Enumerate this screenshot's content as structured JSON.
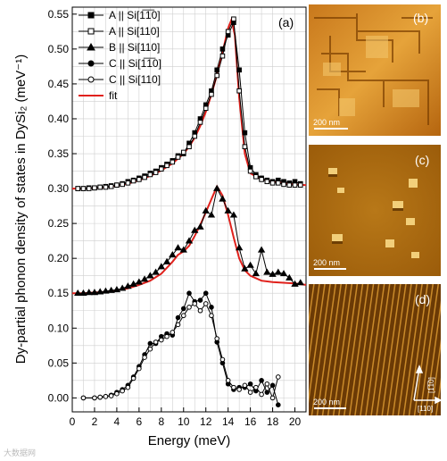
{
  "chart_data": {
    "type": "line",
    "panel_label": "(a)",
    "xlabel": "Energy (meV)",
    "ylabel": "Dy-partial phonon density of states in DySi₂ (meV⁻¹)",
    "xlim": [
      0,
      21
    ],
    "ylim": [
      -0.02,
      0.56
    ],
    "xticks": [
      0,
      2,
      4,
      6,
      8,
      10,
      12,
      14,
      16,
      18,
      20
    ],
    "yticks": [
      0.0,
      0.05,
      0.1,
      0.15,
      0.2,
      0.25,
      0.3,
      0.35,
      0.4,
      0.45,
      0.5,
      0.55
    ],
    "grid": true,
    "legend_position": "top-left",
    "legend": [
      {
        "label": "A || Si[1̅1̅0]",
        "marker": "square-filled"
      },
      {
        "label": "A || Si[110]",
        "marker": "square-open"
      },
      {
        "label": "B || Si[110]",
        "marker": "triangle-filled"
      },
      {
        "label": "C || Si[1̅1̅0]",
        "marker": "circle-filled"
      },
      {
        "label": "C || Si[110]",
        "marker": "circle-open"
      },
      {
        "label": "fit",
        "marker": "line-red"
      }
    ],
    "series": [
      {
        "marker": "square-filled",
        "x": [
          0.5,
          1,
          1.5,
          2,
          2.5,
          3,
          3.5,
          4,
          4.5,
          5,
          5.5,
          6,
          6.5,
          7,
          7.5,
          8,
          8.5,
          9,
          9.5,
          10,
          10.5,
          11,
          11.5,
          12,
          12.5,
          13,
          13.5,
          14,
          14.5,
          15,
          15.5,
          16,
          16.5,
          17,
          17.5,
          18,
          18.5,
          19,
          19.5,
          20,
          20.5
        ],
        "y": [
          0.3,
          0.3,
          0.301,
          0.301,
          0.302,
          0.303,
          0.304,
          0.305,
          0.307,
          0.31,
          0.312,
          0.315,
          0.318,
          0.322,
          0.325,
          0.33,
          0.335,
          0.34,
          0.347,
          0.35,
          0.365,
          0.38,
          0.4,
          0.42,
          0.44,
          0.47,
          0.5,
          0.52,
          0.538,
          0.47,
          0.38,
          0.33,
          0.32,
          0.315,
          0.312,
          0.31,
          0.312,
          0.31,
          0.308,
          0.31,
          0.307
        ]
      },
      {
        "marker": "square-open",
        "x": [
          0.5,
          1,
          1.5,
          2,
          2.5,
          3,
          3.5,
          4,
          4.5,
          5,
          5.5,
          6,
          6.5,
          7,
          7.5,
          8,
          8.5,
          9,
          9.5,
          10,
          10.5,
          11,
          11.5,
          12,
          12.5,
          13,
          13.5,
          14,
          14.5,
          15,
          15.5,
          16,
          16.5,
          17,
          17.5,
          18,
          18.5,
          19,
          19.5,
          20,
          20.5
        ],
        "y": [
          0.3,
          0.3,
          0.3,
          0.301,
          0.302,
          0.302,
          0.303,
          0.305,
          0.306,
          0.308,
          0.311,
          0.313,
          0.316,
          0.32,
          0.323,
          0.328,
          0.333,
          0.338,
          0.345,
          0.352,
          0.36,
          0.375,
          0.395,
          0.415,
          0.435,
          0.462,
          0.49,
          0.525,
          0.543,
          0.44,
          0.36,
          0.325,
          0.317,
          0.313,
          0.31,
          0.308,
          0.308,
          0.306,
          0.305,
          0.305,
          0.305
        ]
      },
      {
        "marker": "triangle-filled",
        "x": [
          0.5,
          1,
          1.5,
          2,
          2.5,
          3,
          3.5,
          4,
          4.5,
          5,
          5.5,
          6,
          6.5,
          7,
          7.5,
          8,
          8.5,
          9,
          9.5,
          10,
          10.5,
          11,
          11.5,
          12,
          12.5,
          13,
          13.5,
          14,
          14.5,
          15,
          15.5,
          16,
          16.5,
          17,
          17.5,
          18,
          18.5,
          19,
          19.5,
          20,
          20.5
        ],
        "y": [
          0.15,
          0.15,
          0.151,
          0.151,
          0.152,
          0.153,
          0.154,
          0.155,
          0.157,
          0.16,
          0.163,
          0.166,
          0.17,
          0.175,
          0.18,
          0.188,
          0.195,
          0.205,
          0.215,
          0.212,
          0.225,
          0.24,
          0.245,
          0.268,
          0.262,
          0.3,
          0.285,
          0.268,
          0.262,
          0.215,
          0.185,
          0.19,
          0.178,
          0.212,
          0.18,
          0.177,
          0.18,
          0.178,
          0.172,
          0.163,
          0.165
        ]
      },
      {
        "marker": "circle-filled",
        "x": [
          1,
          2,
          2.5,
          3,
          3.5,
          4,
          4.5,
          5,
          5.5,
          6,
          6.5,
          7,
          7.5,
          8,
          8.5,
          9,
          9.5,
          10,
          10.5,
          11,
          11.5,
          12,
          12.5,
          13,
          13.5,
          14,
          14.5,
          15,
          15.5,
          16,
          16.5,
          17,
          17.5,
          18,
          18.5
        ],
        "y": [
          0.0,
          0.0,
          0.001,
          0.002,
          0.004,
          0.008,
          0.012,
          0.018,
          0.03,
          0.045,
          0.062,
          0.078,
          0.078,
          0.088,
          0.092,
          0.09,
          0.115,
          0.128,
          0.15,
          0.138,
          0.14,
          0.15,
          0.13,
          0.08,
          0.05,
          0.02,
          0.012,
          0.015,
          0.015,
          0.02,
          0.01,
          0.025,
          0.008,
          0.018,
          -0.01
        ]
      },
      {
        "marker": "circle-open",
        "x": [
          1,
          2,
          2.5,
          3,
          3.5,
          4,
          4.5,
          5,
          5.5,
          6,
          6.5,
          7,
          7.5,
          8,
          8.5,
          9,
          9.5,
          10,
          10.5,
          11,
          11.5,
          12,
          12.5,
          13,
          13.5,
          14,
          14.5,
          15,
          15.5,
          16,
          16.5,
          17,
          17.5,
          18,
          18.5
        ],
        "y": [
          0.0,
          0.0,
          0.001,
          0.002,
          0.003,
          0.006,
          0.01,
          0.015,
          0.028,
          0.042,
          0.058,
          0.07,
          0.08,
          0.083,
          0.088,
          0.094,
          0.105,
          0.118,
          0.13,
          0.135,
          0.125,
          0.135,
          0.118,
          0.085,
          0.055,
          0.025,
          0.015,
          0.012,
          0.018,
          0.008,
          0.015,
          0.005,
          0.02,
          0.0,
          0.03
        ]
      }
    ],
    "fits": [
      {
        "color": "#e0201b",
        "x": [
          0,
          1,
          2,
          3,
          4,
          5,
          6,
          7,
          8,
          9,
          10,
          10.5,
          11,
          11.5,
          12,
          12.5,
          13,
          13.5,
          14,
          14.3,
          14.6,
          15,
          15.5,
          16,
          17,
          18,
          19,
          20,
          21
        ],
        "y": [
          0.3,
          0.3,
          0.301,
          0.302,
          0.304,
          0.307,
          0.312,
          0.318,
          0.326,
          0.336,
          0.35,
          0.36,
          0.373,
          0.39,
          0.41,
          0.435,
          0.463,
          0.495,
          0.53,
          0.542,
          0.52,
          0.43,
          0.35,
          0.322,
          0.313,
          0.31,
          0.308,
          0.306,
          0.305
        ]
      },
      {
        "color": "#e0201b",
        "x": [
          0,
          1,
          2,
          3,
          4,
          5,
          6,
          7,
          8,
          9,
          9.5,
          10,
          10.5,
          11,
          11.5,
          12,
          12.5,
          13,
          13.5,
          14,
          14.5,
          15,
          15.5,
          16,
          17,
          18,
          19,
          20,
          21
        ],
        "y": [
          0.15,
          0.15,
          0.151,
          0.152,
          0.154,
          0.157,
          0.162,
          0.168,
          0.178,
          0.195,
          0.205,
          0.21,
          0.218,
          0.232,
          0.248,
          0.266,
          0.285,
          0.303,
          0.29,
          0.262,
          0.23,
          0.2,
          0.183,
          0.175,
          0.168,
          0.166,
          0.165,
          0.164,
          0.162
        ]
      }
    ]
  },
  "images": [
    {
      "label": "(b)",
      "scale_bar": "200 nm"
    },
    {
      "label": "(c)",
      "scale_bar": "200 nm"
    },
    {
      "label": "(d)",
      "scale_bar": "200 nm",
      "arrow_labels": [
        "[1̅1̅0]",
        "[110]"
      ]
    }
  ],
  "watermark": "大数据网"
}
